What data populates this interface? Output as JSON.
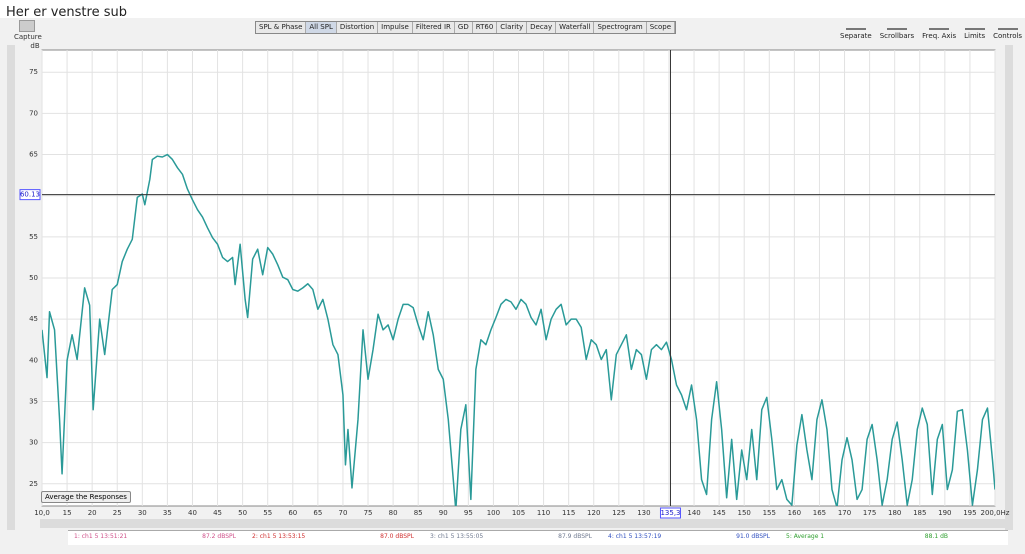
{
  "ui": {
    "title": "Her er venstre sub",
    "capture": "Capture",
    "tabs": [
      "SPL & Phase",
      "All SPL",
      "Distortion",
      "Impulse",
      "Filtered IR",
      "GD",
      "RT60",
      "Clarity",
      "Decay",
      "Waterfall",
      "Spectrogram",
      "Scope"
    ],
    "active_tab": 1,
    "buttons": [
      "Separate",
      "Scrollbars",
      "Freq. Axis",
      "Limits",
      "Controls"
    ],
    "average_button": "Average the Responses",
    "legend": [
      {
        "label": "1: ch1 5 13:51:21",
        "level": "87.2 dBSPL",
        "color": "#d0508a"
      },
      {
        "label": "2: ch1 5 13:53:15",
        "level": "87.0 dBSPL",
        "color": "#d03030"
      },
      {
        "label": "3: ch1 5 13:55:05",
        "level": "87.9 dBSPL",
        "color": "#707a90"
      },
      {
        "label": "4: ch1 5 13:57:19",
        "level": "91.0 dBSPL",
        "color": "#3050c0"
      },
      {
        "label": "5: Average 1",
        "level": "88.1 dB",
        "color": "#30a030"
      }
    ]
  },
  "chart_data": {
    "type": "line",
    "y_label": "dB",
    "xlim": [
      10,
      200
    ],
    "ylim": [
      22.3,
      77.7
    ],
    "xticks": [
      {
        "value": 10,
        "label": "10,0"
      },
      15,
      20,
      25,
      30,
      35,
      40,
      45,
      50,
      55,
      60,
      65,
      70,
      75,
      80,
      85,
      90,
      95,
      100,
      105,
      110,
      115,
      120,
      125,
      130,
      135,
      140,
      145,
      150,
      155,
      160,
      165,
      170,
      175,
      180,
      185,
      190,
      195,
      {
        "value": 200,
        "label": "200,0Hz"
      }
    ],
    "yticks": [
      25,
      30,
      35,
      40,
      45,
      50,
      55,
      60,
      65,
      70,
      75
    ],
    "grid": true,
    "cursor_y": 60.13,
    "cursor_x": {
      "value": 135.3,
      "label": "135,3"
    },
    "x": [
      10,
      11,
      11.5,
      12.5,
      13.5,
      14,
      15,
      16,
      17,
      18.5,
      19.5,
      20.2,
      21.5,
      22.5,
      24,
      25,
      26,
      27,
      28,
      29,
      30,
      30.5,
      31.5,
      32,
      33,
      34,
      35,
      36,
      37,
      38,
      39,
      40,
      41,
      42,
      43,
      44,
      45,
      46,
      47,
      48,
      48.5,
      49.5,
      50.5,
      51,
      52,
      53,
      54,
      55,
      56,
      57,
      58,
      59,
      60,
      61,
      62,
      63,
      64,
      65,
      66,
      67,
      68,
      69,
      70,
      70.5,
      71,
      71.8,
      73,
      74,
      75,
      76,
      77,
      78,
      79,
      80,
      81,
      82,
      83,
      84,
      85,
      86,
      87,
      88,
      89,
      90,
      91,
      92,
      92.5,
      93.5,
      94.5,
      95.5,
      96.5,
      97.5,
      98.5,
      99.5,
      100.5,
      101.5,
      102.5,
      103.5,
      104.5,
      105.5,
      106.5,
      107.5,
      108.5,
      109.5,
      110.5,
      111.5,
      112.5,
      113.5,
      114.5,
      115.5,
      116.5,
      117.5,
      118.5,
      119.5,
      120.5,
      121.5,
      122.5,
      123.5,
      124.5,
      125.5,
      126.5,
      127.5,
      128.5,
      129.5,
      130.5,
      131.5,
      132.5,
      133.5,
      134.5,
      135.5,
      136.5,
      137.5,
      138.5,
      139.5,
      140.5,
      141.5,
      142.5,
      143.5,
      144.5,
      145.5,
      146.5,
      147.5,
      148.5,
      149.5,
      150.5,
      151.5,
      152.5,
      153.5,
      154.5,
      155.5,
      156.5,
      157.5,
      158.5,
      159.5,
      160.5,
      161.5,
      162.5,
      163.5,
      164.5,
      165.5,
      166.5,
      167.5,
      168.5,
      169.5,
      170.5,
      171.5,
      172.5,
      173.5,
      174.5,
      175.5,
      176.5,
      177.5,
      178.5,
      179.5,
      180.5,
      181.5,
      182.5,
      183.5,
      184.5,
      185.5,
      186.5,
      187.5,
      188.5,
      189.5,
      190.5,
      191.5,
      192.5,
      193.5,
      194.5,
      195.5,
      196.5,
      197.5,
      198.5,
      199.5,
      200
    ],
    "series": [
      {
        "color": "#2a9a98",
        "values": [
          43.7,
          37.9,
          45.9,
          43.7,
          32.8,
          26.2,
          40,
          43.1,
          40.1,
          48.8,
          46.7,
          34.0,
          45.0,
          40.7,
          48.6,
          49.2,
          52.0,
          53.5,
          54.7,
          59.8,
          60.2,
          58.9,
          62.0,
          64.4,
          64.8,
          64.7,
          65.0,
          64.4,
          63.4,
          62.6,
          60.8,
          59.5,
          58.3,
          57.4,
          56.1,
          54.9,
          54.1,
          52.5,
          52.0,
          52.5,
          49.2,
          54.1,
          47.4,
          45.2,
          52.3,
          53.5,
          50.4,
          53.7,
          52.9,
          51.6,
          50.1,
          49.8,
          48.6,
          48.4,
          48.8,
          49.3,
          48.6,
          46.2,
          47.4,
          45.0,
          41.9,
          40.7,
          35.8,
          27.3,
          31.6,
          24.5,
          32.8,
          43.7,
          37.7,
          41.3,
          45.6,
          43.7,
          44.3,
          42.5,
          45.0,
          46.8,
          46.8,
          46.4,
          44.3,
          42.5,
          45.9,
          43.1,
          38.9,
          37.7,
          32.8,
          25.5,
          21.8,
          31.6,
          34.6,
          23.1,
          38.9,
          42.5,
          41.9,
          43.7,
          45.2,
          46.8,
          47.4,
          47.1,
          46.2,
          47.4,
          46.8,
          45.2,
          44.3,
          46.2,
          42.5,
          45.0,
          46.2,
          46.8,
          44.3,
          45.0,
          45.0,
          44.0,
          40.1,
          42.5,
          41.9,
          40.1,
          41.3,
          35.2,
          40.7,
          41.9,
          43.1,
          38.9,
          41.3,
          40.7,
          37.7,
          41.3,
          41.9,
          41.3,
          42.2,
          40.1,
          37.0,
          35.8,
          34.0,
          37.0,
          32.8,
          25.5,
          23.7,
          32.8,
          37.4,
          31.6,
          23.3,
          30.4,
          23.1,
          29.1,
          25.5,
          31.6,
          25.5,
          34.0,
          35.5,
          30.4,
          24.3,
          25.5,
          23.1,
          22.4,
          29.7,
          33.4,
          29.1,
          25.5,
          32.8,
          35.2,
          31.6,
          24.3,
          22.1,
          27.9,
          30.6,
          27.9,
          23.1,
          24.3,
          30.4,
          32.2,
          27.9,
          22.4,
          25.5,
          30.4,
          32.5,
          27.9,
          22.4,
          25.5,
          31.6,
          34.2,
          32.2,
          23.7,
          30.4,
          32.2,
          24.3,
          26.7,
          33.8,
          34.0,
          29.1,
          22.4,
          26.7,
          32.8,
          34.2,
          27.9,
          24.3
        ]
      }
    ]
  }
}
